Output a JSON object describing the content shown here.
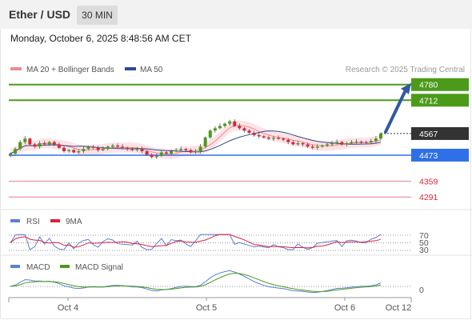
{
  "header": {
    "pair": "Ether / USD",
    "timeframe": "30 MIN",
    "datetime": "Monday, October 6, 2025 8:48:56 AM CET"
  },
  "legend": {
    "ma20_label": "MA 20 + Bollinger Bands",
    "ma50_label": "MA 50",
    "credit": "Research © 2025 Trading Central",
    "colors": {
      "ma20": "#f08a8a",
      "ma50": "#2f4a8f",
      "bands": "#fde3e6"
    }
  },
  "levels": [
    {
      "value": "4780",
      "kind": "resistance",
      "color": "#4c9a1a"
    },
    {
      "value": "4712",
      "kind": "resistance",
      "color": "#4c9a1a"
    },
    {
      "value": "4567",
      "kind": "last-price",
      "color": "#333333"
    },
    {
      "value": "4473",
      "kind": "pivot",
      "color": "#2f6fe8"
    },
    {
      "value": "4359",
      "kind": "support",
      "color": "#d9253c"
    },
    {
      "value": "4291",
      "kind": "support",
      "color": "#d9253c"
    }
  ],
  "rsi": {
    "label": "RSI",
    "ma_label": "9MA",
    "levels": [
      "70",
      "50",
      "30"
    ],
    "colors": {
      "rsi": "#5b7fd6",
      "ma": "#d9253c"
    }
  },
  "macd": {
    "label": "MACD",
    "signal_label": "MACD Signal",
    "zero_label": "0",
    "colors": {
      "macd": "#5b7fd6",
      "signal": "#4c9a1a"
    }
  },
  "x_axis": {
    "ticks": [
      "Oct 4",
      "Oct 5",
      "Oct 6",
      "Oct 12"
    ]
  },
  "chart_data": {
    "type": "candlestick",
    "instrument": "Ether / USD",
    "interval": "30 MIN",
    "y_range": [
      4250,
      4800
    ],
    "last_price": 4567,
    "levels": [
      4780,
      4712,
      4567,
      4473,
      4359,
      4291
    ],
    "projection": {
      "from": 4567,
      "to": 4780
    },
    "close_series": [
      4480,
      4500,
      4530,
      4545,
      4520,
      4510,
      4525,
      4520,
      4530,
      4520,
      4505,
      4490,
      4495,
      4485,
      4490,
      4500,
      4510,
      4505,
      4495,
      4500,
      4510,
      4515,
      4510,
      4505,
      4500,
      4495,
      4500,
      4490,
      4475,
      4465,
      4470,
      4485,
      4480,
      4490,
      4495,
      4500,
      4495,
      4485,
      4490,
      4510,
      4550,
      4580,
      4590,
      4600,
      4610,
      4620,
      4600,
      4590,
      4580,
      4570,
      4560,
      4555,
      4550,
      4545,
      4548,
      4545,
      4540,
      4530,
      4520,
      4525,
      4520,
      4510,
      4505,
      4510,
      4515,
      4520,
      4525,
      4530,
      4520,
      4525,
      4530,
      4532,
      4530,
      4528,
      4535,
      4545,
      4567
    ],
    "rsi": {
      "levels": [
        70,
        50,
        30
      ]
    },
    "macd": {
      "zero_line": 0
    }
  }
}
